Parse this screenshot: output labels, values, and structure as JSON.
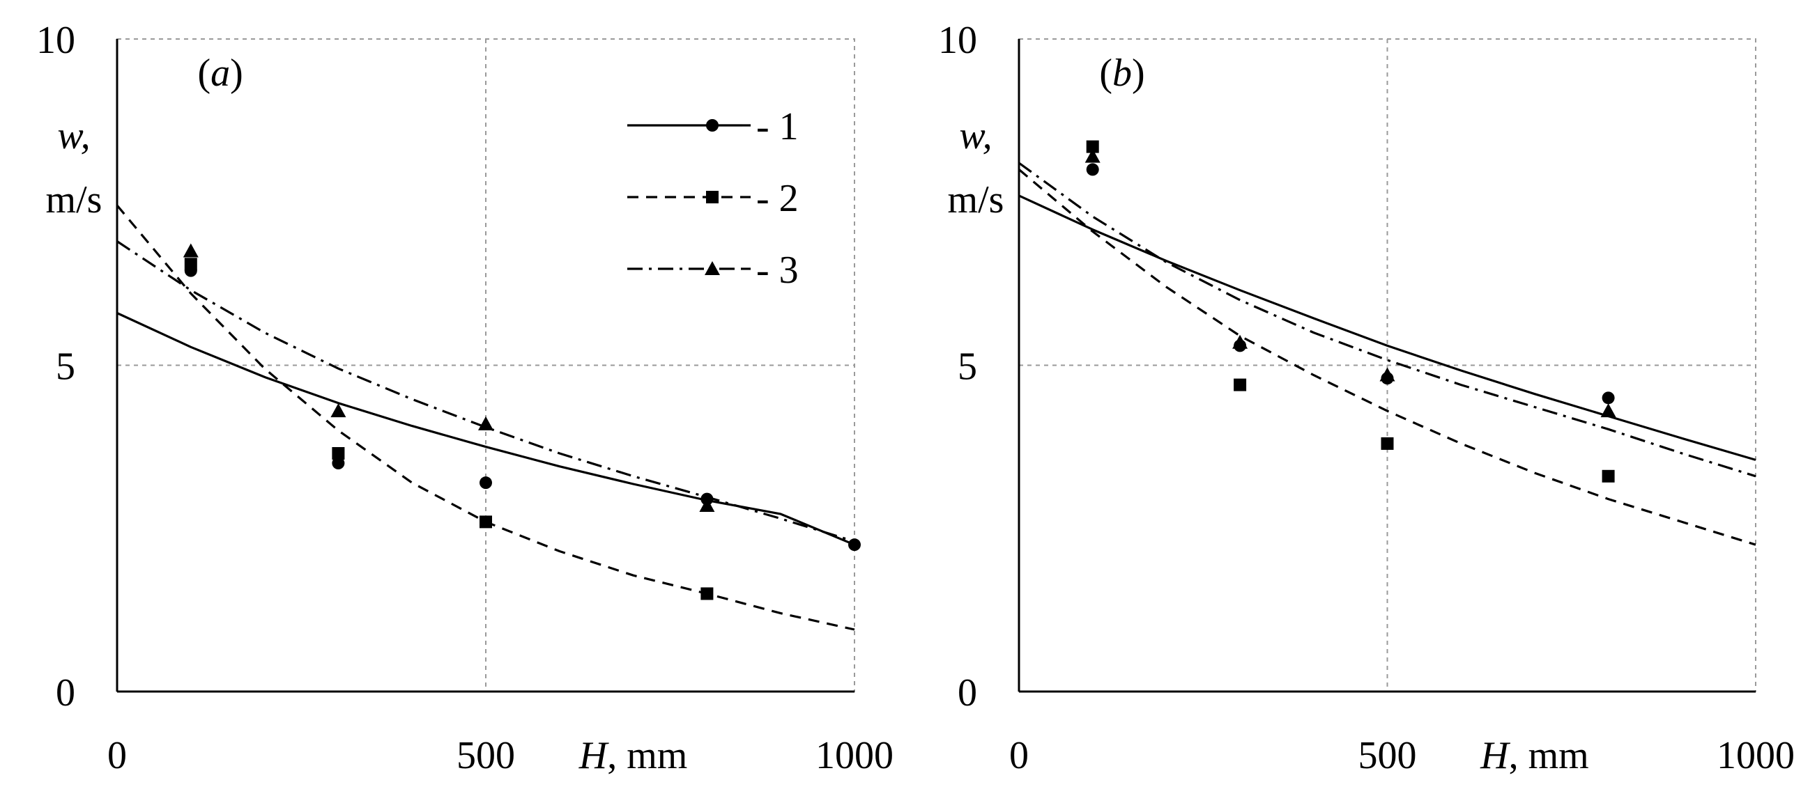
{
  "chart_data": [
    {
      "type": "scatter",
      "title": "",
      "panel_label": "(a)",
      "panel_letter": "a",
      "xlabel": "H, mm",
      "xlabel_var": "H",
      "xlabel_unit": ", mm",
      "ylabel": "w, m/s",
      "ylabel_var": "w",
      "ylabel_unit": "m/s",
      "xlim": [
        0,
        1000
      ],
      "ylim": [
        0,
        10
      ],
      "xticks": [
        0,
        500,
        1000
      ],
      "yticks": [
        0,
        5,
        10
      ],
      "grid": true,
      "legend_position": "top-right",
      "series": [
        {
          "name": "1",
          "marker": "circle",
          "line_style": "solid",
          "points": [
            [
              100,
              6.45
            ],
            [
              300,
              3.5
            ],
            [
              500,
              3.2
            ],
            [
              800,
              2.95
            ],
            [
              1000,
              2.25
            ]
          ],
          "fit": [
            [
              0,
              5.8
            ],
            [
              100,
              5.28
            ],
            [
              200,
              4.82
            ],
            [
              300,
              4.42
            ],
            [
              400,
              4.07
            ],
            [
              500,
              3.75
            ],
            [
              600,
              3.45
            ],
            [
              700,
              3.18
            ],
            [
              800,
              2.93
            ],
            [
              900,
              2.72
            ],
            [
              1000,
              2.25
            ]
          ]
        },
        {
          "name": "2",
          "marker": "square",
          "line_style": "dashed",
          "points": [
            [
              100,
              6.55
            ],
            [
              300,
              3.65
            ],
            [
              500,
              2.6
            ],
            [
              800,
              1.5
            ]
          ],
          "fit": [
            [
              0,
              7.45
            ],
            [
              100,
              6.1
            ],
            [
              200,
              4.95
            ],
            [
              300,
              4.0
            ],
            [
              400,
              3.2
            ],
            [
              500,
              2.6
            ],
            [
              600,
              2.15
            ],
            [
              700,
              1.78
            ],
            [
              800,
              1.5
            ],
            [
              900,
              1.2
            ],
            [
              1000,
              0.95
            ]
          ]
        },
        {
          "name": "3",
          "marker": "triangle",
          "line_style": "dash-dot",
          "points": [
            [
              100,
              6.75
            ],
            [
              300,
              4.3
            ],
            [
              500,
              4.1
            ],
            [
              800,
              2.85
            ]
          ],
          "fit": [
            [
              0,
              6.9
            ],
            [
              100,
              6.15
            ],
            [
              200,
              5.5
            ],
            [
              300,
              4.95
            ],
            [
              400,
              4.48
            ],
            [
              500,
              4.05
            ],
            [
              600,
              3.65
            ],
            [
              700,
              3.3
            ],
            [
              800,
              2.98
            ],
            [
              900,
              2.65
            ],
            [
              1000,
              2.3
            ]
          ]
        }
      ]
    },
    {
      "type": "scatter",
      "title": "",
      "panel_label": "(b)",
      "panel_letter": "b",
      "xlabel": "H, mm",
      "xlabel_var": "H",
      "xlabel_unit": ", mm",
      "ylabel": "w, m/s",
      "ylabel_var": "w",
      "ylabel_unit": "m/s",
      "xlim": [
        0,
        1000
      ],
      "ylim": [
        0,
        10
      ],
      "xticks": [
        0,
        500,
        1000
      ],
      "yticks": [
        0,
        5,
        10
      ],
      "grid": true,
      "series": [
        {
          "name": "1",
          "marker": "circle",
          "line_style": "solid",
          "points": [
            [
              100,
              8.0
            ],
            [
              300,
              5.3
            ],
            [
              500,
              4.8
            ],
            [
              800,
              4.5
            ]
          ],
          "fit": [
            [
              0,
              7.6
            ],
            [
              100,
              7.08
            ],
            [
              200,
              6.6
            ],
            [
              300,
              6.15
            ],
            [
              400,
              5.72
            ],
            [
              500,
              5.3
            ],
            [
              600,
              4.92
            ],
            [
              700,
              4.56
            ],
            [
              800,
              4.22
            ],
            [
              900,
              3.88
            ],
            [
              1000,
              3.55
            ]
          ]
        },
        {
          "name": "2",
          "marker": "square",
          "line_style": "dashed",
          "points": [
            [
              100,
              8.35
            ],
            [
              300,
              4.7
            ],
            [
              500,
              3.8
            ],
            [
              800,
              3.3
            ]
          ],
          "fit": [
            [
              0,
              8.0
            ],
            [
              100,
              7.05
            ],
            [
              200,
              6.2
            ],
            [
              300,
              5.45
            ],
            [
              400,
              4.85
            ],
            [
              500,
              4.3
            ],
            [
              600,
              3.8
            ],
            [
              700,
              3.35
            ],
            [
              800,
              2.95
            ],
            [
              900,
              2.6
            ],
            [
              1000,
              2.25
            ]
          ]
        },
        {
          "name": "3",
          "marker": "triangle",
          "line_style": "dash-dot",
          "points": [
            [
              100,
              8.2
            ],
            [
              300,
              5.35
            ],
            [
              500,
              4.85
            ],
            [
              800,
              4.3
            ]
          ],
          "fit": [
            [
              0,
              8.1
            ],
            [
              100,
              7.28
            ],
            [
              200,
              6.58
            ],
            [
              300,
              6.0
            ],
            [
              400,
              5.5
            ],
            [
              500,
              5.08
            ],
            [
              600,
              4.7
            ],
            [
              700,
              4.36
            ],
            [
              800,
              4.02
            ],
            [
              900,
              3.65
            ],
            [
              1000,
              3.3
            ]
          ]
        }
      ]
    }
  ]
}
